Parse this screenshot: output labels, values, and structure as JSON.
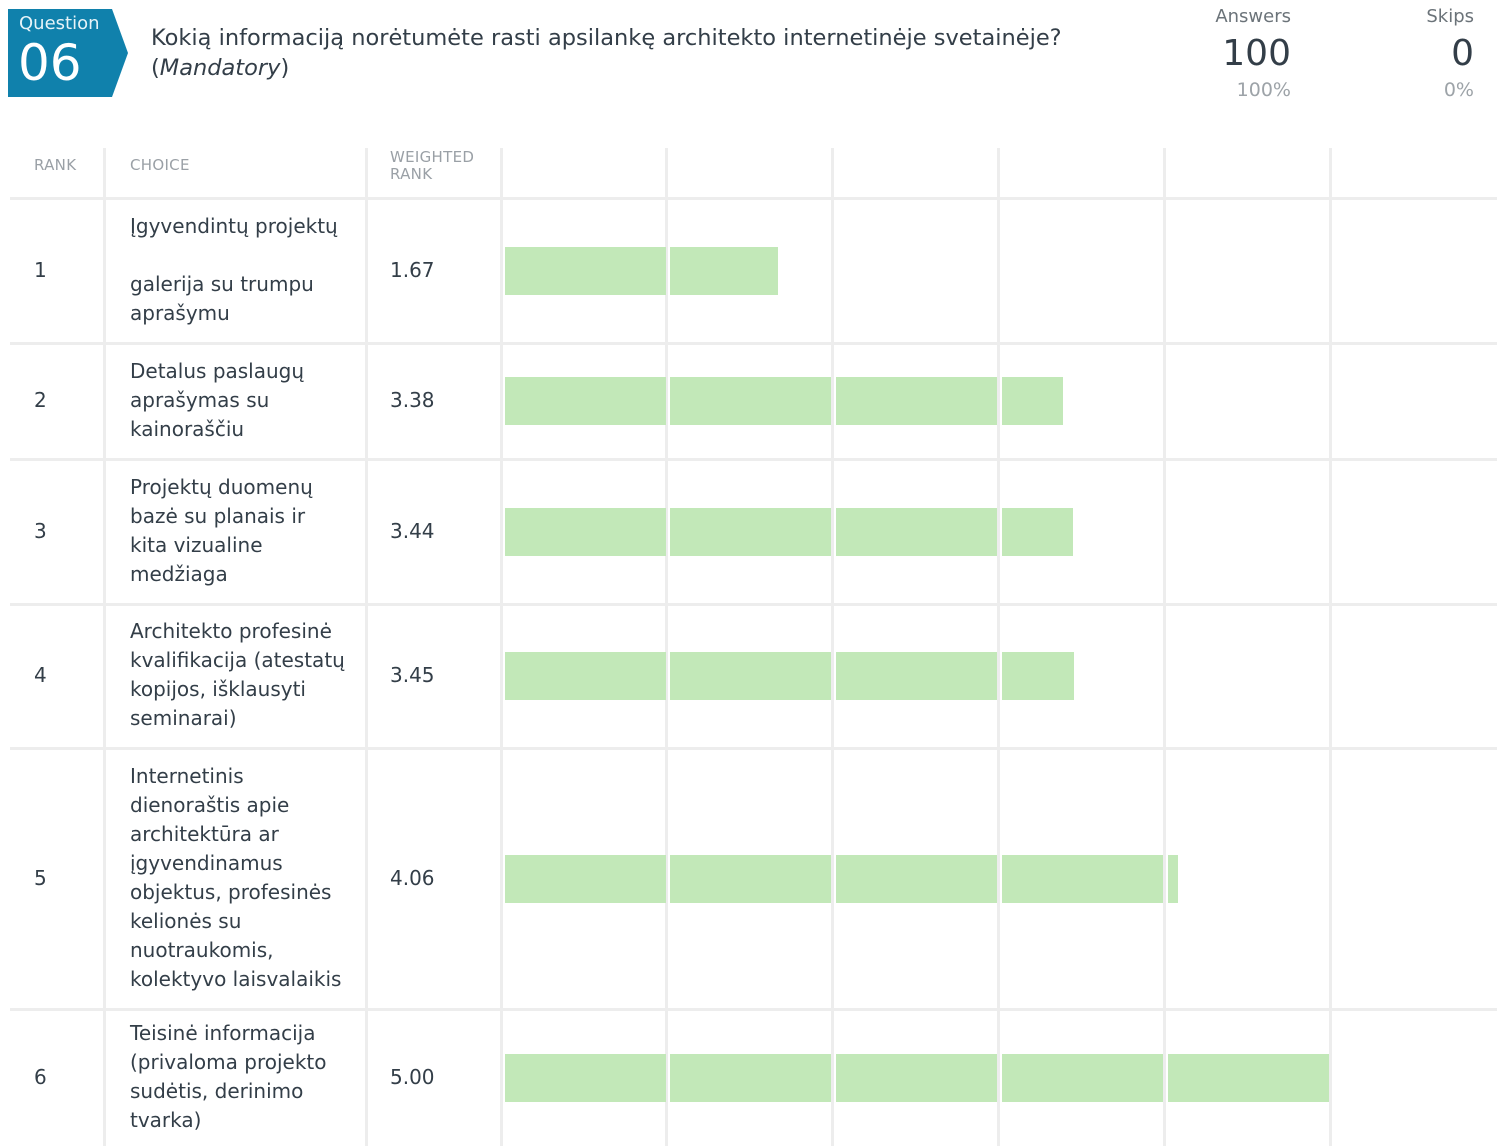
{
  "question": {
    "badge_label": "Question",
    "number": "06",
    "text": "Kokią informaciją norėtumėte rasti apsilankę architekto internetinėje svetainėje?",
    "mandatory_label": "Mandatory"
  },
  "stats": {
    "answers_label": "Answers",
    "answers_value": "100",
    "answers_pct": "100%",
    "skips_label": "Skips",
    "skips_value": "0",
    "skips_pct": "0%"
  },
  "table": {
    "headers": {
      "rank": "RANK",
      "choice": "CHOICE",
      "weighted_rank_line1": "WEIGHTED",
      "weighted_rank_line2": "RANK"
    }
  },
  "colors": {
    "badge": "#1081ac",
    "bar": "#c2e8b8",
    "grid": "#ededed"
  },
  "chart_data": {
    "type": "bar",
    "orientation": "horizontal",
    "categories": [
      "Įgyvendintų projektų galerija su trumpu aprašymu",
      "Detalus paslaugų aprašymas su kainoraščiu",
      "Projektų duomenų bazė su planais ir kita vizualine medžiaga",
      "Architekto profesinė kvalifikacija (atestatų kopijos, išklausyti seminarai)",
      "Internetinis dienoraštis apie architektūra ar įgyvendinamus objektus, profesinės kelionės su nuotraukomis, kolektyvo laisvalaikis",
      "Teisinė informacija (privaloma projekto sudėtis, derinimo tvarka)"
    ],
    "ranks": [
      "1",
      "2",
      "3",
      "4",
      "5",
      "6"
    ],
    "choice_lines": [
      [
        "Įgyvendintų projektų",
        "",
        "galerija su trumpu",
        "aprašymu"
      ],
      [
        "Detalus paslaugų",
        "aprašymas su",
        "kainoraščiu"
      ],
      [
        "Projektų duomenų",
        "bazė su planais ir",
        "kita vizualine",
        "medžiaga"
      ],
      [
        "Architekto profesinė",
        "kvalifikacija (atestatų",
        "kopijos, išklausyti",
        "seminarai)"
      ],
      [
        "Internetinis",
        "dienoraštis apie",
        "architektūra ar",
        "įgyvendinamus",
        "objektus, profesinės",
        "kelionės su",
        "nuotraukomis,",
        "kolektyvo laisvalaikis"
      ],
      [
        "Teisinė informacija",
        "(privaloma projekto",
        "sudėtis, derinimo",
        "tvarka)"
      ]
    ],
    "value_labels": [
      "1.67",
      "3.38",
      "3.44",
      "3.45",
      "4.06",
      "5.00"
    ],
    "values": [
      1.67,
      3.38,
      3.44,
      3.45,
      4.06,
      5.0
    ],
    "xlim": [
      0,
      6
    ],
    "grid": true
  }
}
